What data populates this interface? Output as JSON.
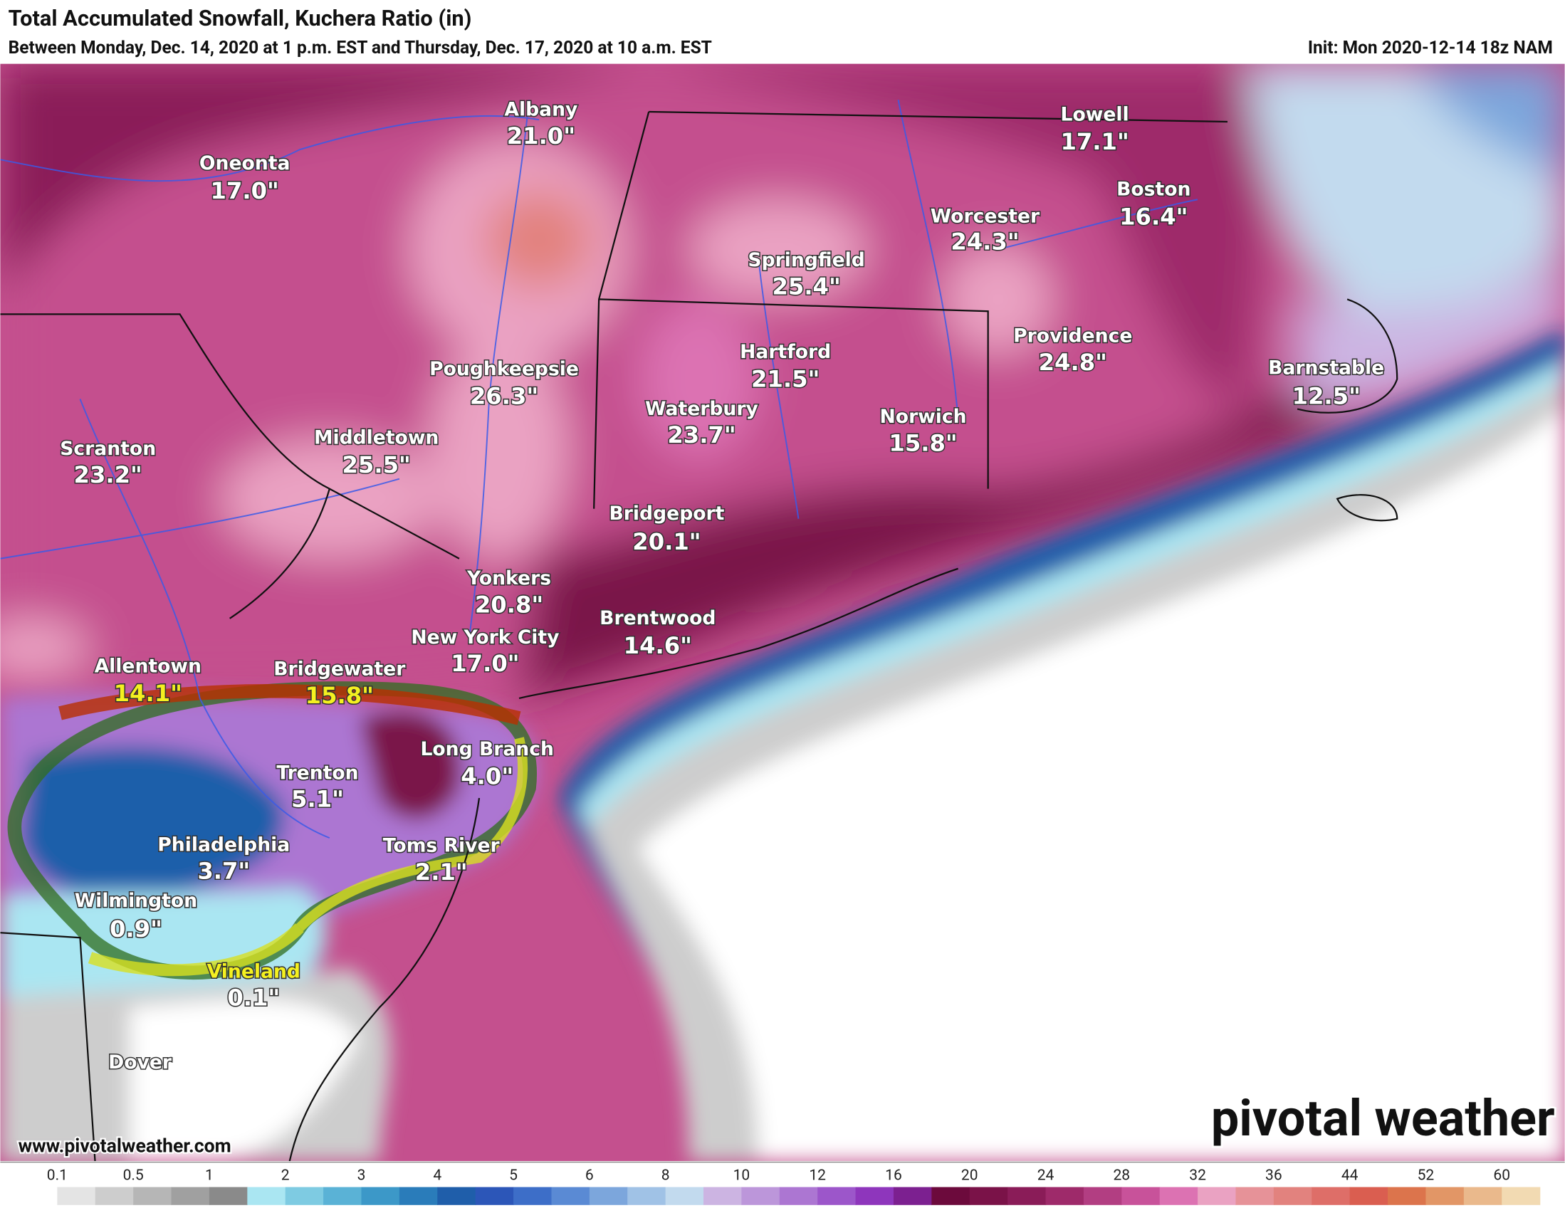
{
  "header": {
    "title": "Total Accumulated Snowfall, Kuchera Ratio (in)",
    "subtitle": "Between Monday, Dec. 14, 2020 at 1 p.m. EST and Thursday, Dec. 17, 2020 at 10 a.m. EST",
    "init": "Init: Mon 2020-12-14 18z NAM"
  },
  "cities": [
    {
      "name": "Albany",
      "value": "21.0\""
    },
    {
      "name": "Oneonta",
      "value": "17.0\""
    },
    {
      "name": "Lowell",
      "value": "17.1\""
    },
    {
      "name": "Boston",
      "value": "16.4\""
    },
    {
      "name": "Worcester",
      "value": "24.3\""
    },
    {
      "name": "Springfield",
      "value": "25.4\""
    },
    {
      "name": "Providence",
      "value": "24.8\""
    },
    {
      "name": "Poughkeepsie",
      "value": "26.3\""
    },
    {
      "name": "Hartford",
      "value": "21.5\""
    },
    {
      "name": "Barnstable",
      "value": "12.5\""
    },
    {
      "name": "Waterbury",
      "value": "23.7\""
    },
    {
      "name": "Norwich",
      "value": "15.8\""
    },
    {
      "name": "Scranton",
      "value": "23.2\""
    },
    {
      "name": "Middletown",
      "value": "25.5\""
    },
    {
      "name": "Bridgeport",
      "value": "20.1\""
    },
    {
      "name": "Yonkers",
      "value": "20.8\""
    },
    {
      "name": "Brentwood",
      "value": "14.6\""
    },
    {
      "name": "New York City",
      "value": "17.0\""
    },
    {
      "name": "Allentown",
      "value": "14.1\""
    },
    {
      "name": "Bridgewater",
      "value": "15.8\""
    },
    {
      "name": "Long Branch",
      "value": "4.0\""
    },
    {
      "name": "Trenton",
      "value": "5.1\""
    },
    {
      "name": "Philadelphia",
      "value": "3.7\""
    },
    {
      "name": "Toms River",
      "value": "2.1\""
    },
    {
      "name": "Wilmington",
      "value": "0.9\""
    },
    {
      "name": "Vineland",
      "value": "0.1\""
    },
    {
      "name": "Dover"
    }
  ],
  "footer": {
    "url": "www.pivotalweather.com",
    "brand": "pivotal weather"
  },
  "legend": {
    "ticks": [
      "0.1",
      "0.5",
      "1",
      "2",
      "3",
      "4",
      "5",
      "6",
      "8",
      "10",
      "12",
      "16",
      "20",
      "24",
      "28",
      "32",
      "36",
      "44",
      "52",
      "60"
    ],
    "colors": [
      "#ffffff",
      "#e4e4e4",
      "#cdcdcd",
      "#b6b6b6",
      "#a0a0a0",
      "#8a8a8a",
      "#aae6f2",
      "#7ecbe2",
      "#5ab2d6",
      "#3c98c8",
      "#2a7cba",
      "#1f5eaa",
      "#2c56b8",
      "#3d6ec8",
      "#5a8ad4",
      "#7ca6dc",
      "#a0c2e6",
      "#c2daee",
      "#ccb4e2",
      "#bc96da",
      "#ac76d2",
      "#9c56ca",
      "#8e36bc",
      "#7c2090",
      "#6c0a3c",
      "#7a1248",
      "#8a1c58",
      "#9e2a6a",
      "#b23e82",
      "#c8529a",
      "#dc72b2",
      "#eaa2c2",
      "#e69298",
      "#e2827e",
      "#de6e68",
      "#da5e50",
      "#dc744c",
      "#e29666",
      "#eab98c",
      "#f2dab2"
    ]
  }
}
